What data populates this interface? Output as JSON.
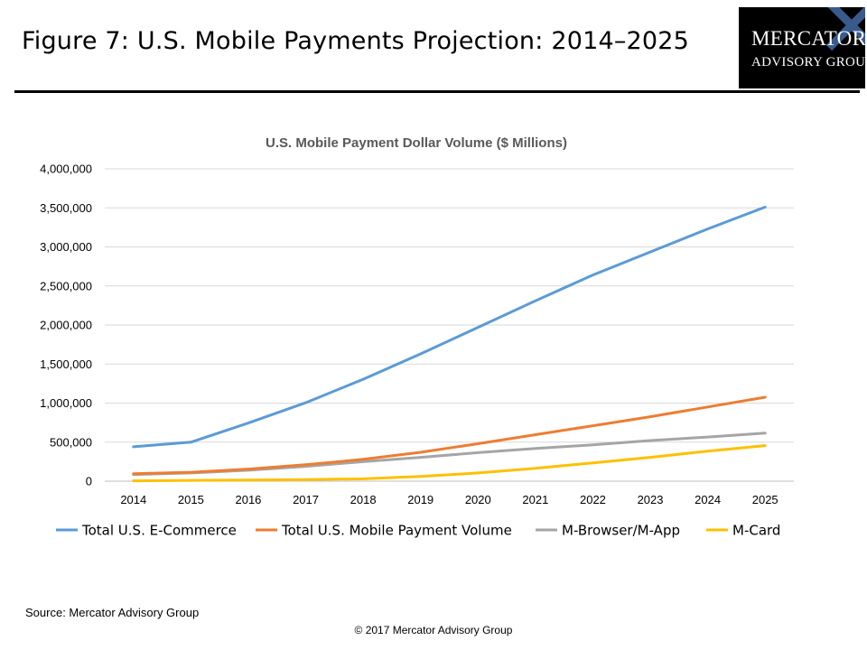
{
  "page": {
    "figure_title": "Figure 7: U.S. Mobile Payments Projection: 2014–2025",
    "logo": {
      "line1": "Mercator",
      "line2": "Advisory Group"
    },
    "source": "Source: Mercator Advisory Group",
    "copyright": "© 2017 Mercator Advisory Group"
  },
  "chart_data": {
    "type": "line",
    "title": "U.S. Mobile Payment Dollar Volume ($ Millions)",
    "xlabel": "",
    "ylabel": "",
    "categories": [
      "2014",
      "2015",
      "2016",
      "2017",
      "2018",
      "2019",
      "2020",
      "2021",
      "2022",
      "2023",
      "2024",
      "2025"
    ],
    "ylim": [
      0,
      4000000
    ],
    "yticks": [
      0,
      500000,
      1000000,
      1500000,
      2000000,
      2500000,
      3000000,
      3500000,
      4000000
    ],
    "ytick_labels": [
      "0",
      "500,000",
      "1,000,000",
      "1,500,000",
      "2,000,000",
      "2,500,000",
      "3,000,000",
      "3,500,000",
      "4,000,000"
    ],
    "grid": true,
    "legend_position": "bottom",
    "series": [
      {
        "name": "Total U.S. E-Commerce",
        "color": "#5B9BD5",
        "values": [
          440000,
          500000,
          745000,
          1005000,
          1305000,
          1630000,
          1970000,
          2310000,
          2640000,
          2935000,
          3230000,
          3510000
        ]
      },
      {
        "name": "Total U.S. Mobile Payment Volume",
        "color": "#ED7D31",
        "values": [
          95000,
          115000,
          155000,
          210000,
          280000,
          370000,
          480000,
          595000,
          710000,
          825000,
          950000,
          1075000
        ]
      },
      {
        "name": "M-Browser/M-App",
        "color": "#A5A5A5",
        "values": [
          85000,
          105000,
          140000,
          190000,
          250000,
          305000,
          365000,
          420000,
          465000,
          520000,
          565000,
          615000
        ]
      },
      {
        "name": "M-Card",
        "color": "#FFC000",
        "values": [
          5000,
          10000,
          14000,
          20000,
          30000,
          60000,
          105000,
          165000,
          235000,
          305000,
          385000,
          455000
        ]
      }
    ]
  }
}
